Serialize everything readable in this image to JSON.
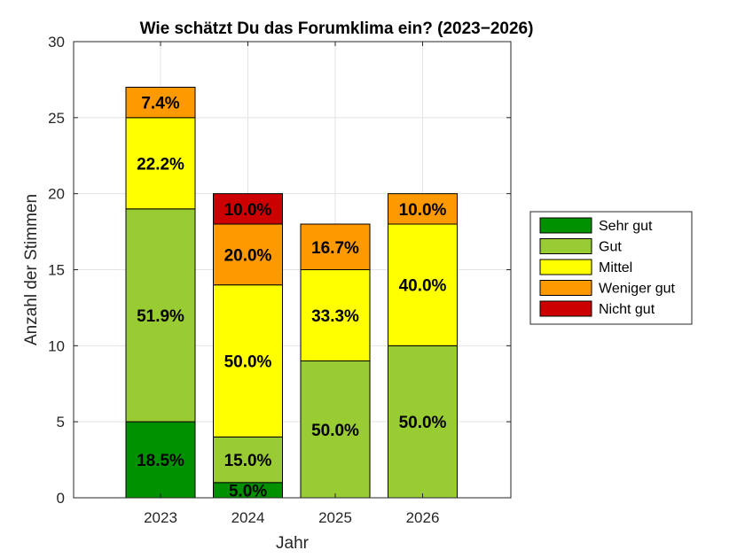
{
  "chart_data": {
    "type": "bar",
    "stacked": true,
    "title": "Wie schätzt Du das Forumklima ein? (2023−2026)",
    "xlabel": "Jahr",
    "ylabel": "Anzahl der Stimmen",
    "ylim": [
      0,
      30
    ],
    "yticks": [
      "0",
      "5",
      "10",
      "15",
      "20",
      "25",
      "30"
    ],
    "grid": true,
    "legend_position": "right",
    "categories": [
      "2023",
      "2024",
      "2025",
      "2026"
    ],
    "series": [
      {
        "name": "Sehr gut",
        "color": "#009100",
        "values": [
          5,
          1,
          0,
          0
        ],
        "labels": [
          "18.5%",
          "5.0%",
          "",
          ""
        ]
      },
      {
        "name": "Gut",
        "color": "#99CC33",
        "values": [
          14,
          3,
          9,
          10
        ],
        "labels": [
          "51.9%",
          "15.0%",
          "50.0%",
          "50.0%"
        ]
      },
      {
        "name": "Mittel",
        "color": "#FFFF00",
        "values": [
          6,
          10,
          6,
          8
        ],
        "labels": [
          "22.2%",
          "50.0%",
          "33.3%",
          "40.0%"
        ]
      },
      {
        "name": "Weniger gut",
        "color": "#FF9900",
        "values": [
          2,
          4,
          3,
          2
        ],
        "labels": [
          "7.4%",
          "20.0%",
          "16.7%",
          "10.0%"
        ]
      },
      {
        "name": "Nicht gut",
        "color": "#CC0000",
        "values": [
          0,
          2,
          0,
          0
        ],
        "labels": [
          "",
          "10.0%",
          "",
          ""
        ]
      }
    ]
  }
}
